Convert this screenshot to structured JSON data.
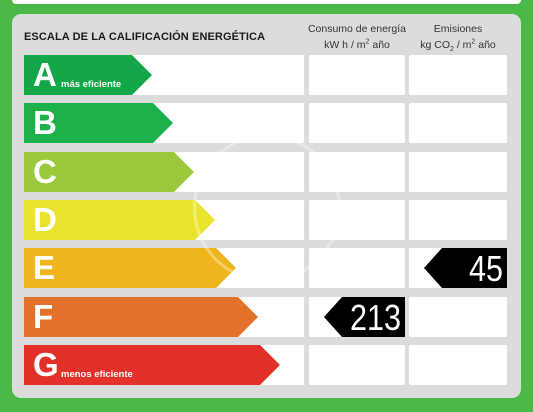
{
  "header": {
    "title": "ESCALA DE LA CALIFICACIÓN ENERGÉTICA",
    "consumo_line1": "Consumo de energía",
    "consumo_line2_prefix": "kW h  / m",
    "consumo_line2_suffix": " año",
    "emisiones_line1": "Emisiones",
    "emisiones_line2_prefix": "kg CO",
    "emisiones_line2_sub": "2",
    "emisiones_line2_mid": "  / m",
    "emisiones_line2_suffix": " año",
    "superscript": "2"
  },
  "ratings": [
    {
      "letter": "A",
      "label": "más eficiente",
      "color": "#14a74a"
    },
    {
      "letter": "B",
      "label": "",
      "color": "#1db14b"
    },
    {
      "letter": "C",
      "label": "",
      "color": "#9ac93d"
    },
    {
      "letter": "D",
      "label": "",
      "color": "#e9e42b"
    },
    {
      "letter": "E",
      "label": "",
      "color": "#efb51d"
    },
    {
      "letter": "F",
      "label": "",
      "color": "#e2722a"
    },
    {
      "letter": "G",
      "label": "menos eficiente",
      "color": "#e2312b"
    }
  ],
  "consumo": {
    "rating": "F",
    "value": "213"
  },
  "emisiones": {
    "rating": "E",
    "value": "45"
  }
}
